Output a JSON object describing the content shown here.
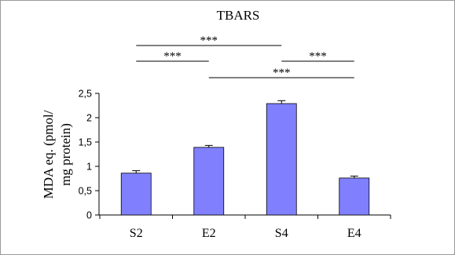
{
  "chart_data": {
    "type": "bar",
    "title": "TBARS",
    "ylabel_line1": "MDA eq. (pmol/",
    "ylabel_line2": "mg protein)",
    "xlabel": "",
    "categories": [
      "S2",
      "E2",
      "S4",
      "E4"
    ],
    "values": [
      0.86,
      1.39,
      2.29,
      0.76
    ],
    "errors": [
      0.05,
      0.04,
      0.06,
      0.04
    ],
    "ylim": [
      0,
      2.5
    ],
    "yticks": [
      "0",
      "0,5",
      "1",
      "1,5",
      "2",
      "2,5"
    ],
    "grid": false,
    "bar_color": "#8080ff",
    "significance": [
      {
        "from": "S2",
        "to": "S4",
        "label": "***"
      },
      {
        "from": "S2",
        "to": "E2",
        "label": "***"
      },
      {
        "from": "S4",
        "to": "E4",
        "label": "***"
      },
      {
        "from": "E2",
        "to": "E4",
        "label": "***"
      }
    ]
  }
}
